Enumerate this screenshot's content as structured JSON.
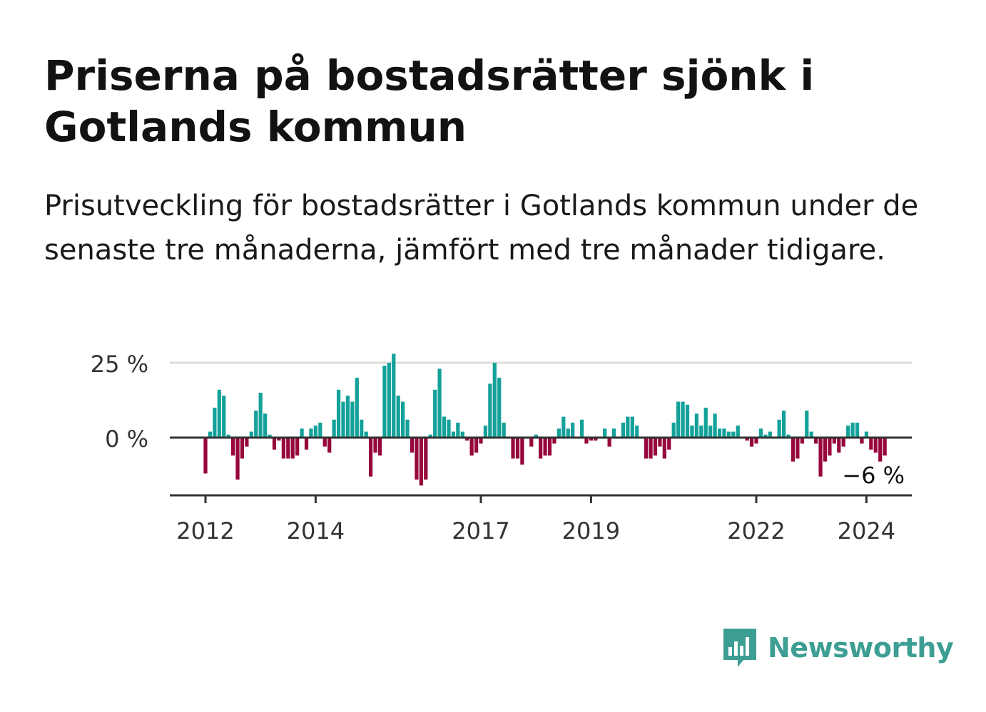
{
  "header": {
    "title": "Priserna på bostadsrätter sjönk i Gotlands kommun",
    "subtitle": "Prisutveckling för bostadsrätter i Gotlands kommun under de senaste tre månaderna, jämfört med tre månader tidigare."
  },
  "brand": {
    "name": "Newsworthy",
    "icon": "newsworthy-bar-chart-icon",
    "color": "#3d9e93"
  },
  "colors": {
    "positive": "#13a19a",
    "negative": "#96063c",
    "grid": "#dddddd",
    "axis": "#333333"
  },
  "chart_data": {
    "type": "bar",
    "title": "",
    "xlabel": "",
    "ylabel": "",
    "ylim": [
      -20,
      30
    ],
    "yticks": [
      {
        "value": 0,
        "label": "0 %"
      },
      {
        "value": 25,
        "label": "25 %"
      }
    ],
    "xticks": [
      {
        "value": 2012.0,
        "label": "2012"
      },
      {
        "value": 2014.0,
        "label": "2014"
      },
      {
        "value": 2017.0,
        "label": "2017"
      },
      {
        "value": 2019.0,
        "label": "2019"
      },
      {
        "value": 2022.0,
        "label": "2022"
      },
      {
        "value": 2024.0,
        "label": "2024"
      }
    ],
    "grid": "horizontal",
    "legend": "none",
    "last_label": "−6 %",
    "series": [
      {
        "start": "2012-01",
        "frequency": "monthly",
        "values": [
          -12,
          2,
          10,
          16,
          14,
          1,
          -6,
          -14,
          -7,
          -3,
          2,
          9,
          15,
          8,
          1,
          -4,
          -1,
          -7,
          -7,
          -7,
          -6,
          3,
          -4,
          3,
          4,
          5,
          -3,
          -5,
          6,
          16,
          12,
          14,
          12,
          20,
          6,
          2,
          -13,
          -5,
          -6,
          24,
          25,
          28,
          14,
          12,
          6,
          -5,
          -14,
          -16,
          -14,
          1,
          16,
          23,
          7,
          6,
          2,
          5,
          2,
          -1,
          -6,
          -5,
          -2,
          4,
          18,
          25,
          20,
          5,
          0,
          -7,
          -7,
          -9,
          0,
          -3,
          1,
          -7,
          -6,
          -6,
          -2,
          3,
          7,
          3,
          5,
          0,
          6,
          -2,
          -1,
          -1,
          0,
          3,
          -3,
          3,
          0,
          5,
          7,
          7,
          4,
          0,
          -7,
          -7,
          -6,
          -3,
          -7,
          -4,
          5,
          12,
          12,
          11,
          4,
          8,
          4,
          10,
          4,
          8,
          3,
          3,
          2,
          2,
          4,
          0,
          -1,
          -3,
          -2,
          3,
          1,
          2,
          0,
          6,
          9,
          1,
          -8,
          -7,
          -2,
          9,
          2,
          -2,
          -13,
          -8,
          -6,
          -2,
          -5,
          -3,
          4,
          5,
          5,
          -2,
          2,
          -4,
          -5,
          -8,
          -6
        ]
      }
    ]
  }
}
